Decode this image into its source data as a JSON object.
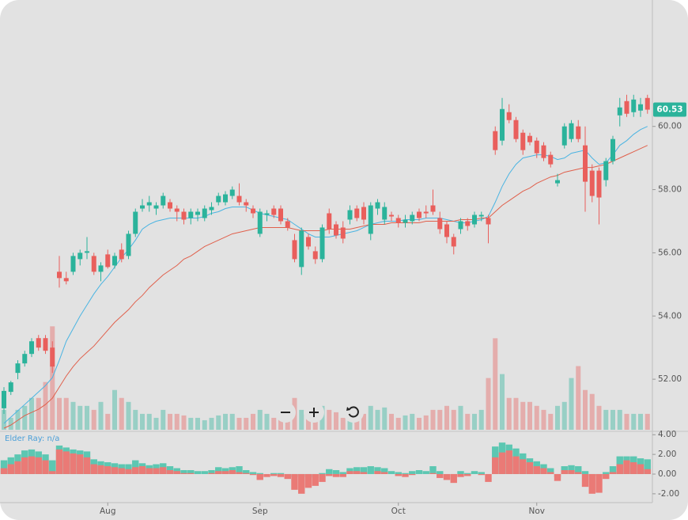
{
  "chart_data": {
    "type": "candlestick",
    "categories": [
      null,
      null,
      null,
      null,
      null,
      null,
      null,
      null,
      null,
      null,
      null,
      null,
      null,
      null,
      null,
      "Aug",
      null,
      null,
      null,
      null,
      null,
      null,
      null,
      null,
      null,
      null,
      null,
      null,
      null,
      null,
      null,
      null,
      null,
      null,
      null,
      null,
      null,
      "Sep",
      null,
      null,
      null,
      null,
      null,
      null,
      null,
      null,
      null,
      null,
      null,
      null,
      null,
      null,
      null,
      null,
      null,
      null,
      null,
      "Oct",
      null,
      null,
      null,
      null,
      null,
      null,
      null,
      null,
      null,
      null,
      null,
      null,
      null,
      null,
      null,
      null,
      null,
      null,
      null,
      "Nov",
      null,
      null,
      null,
      null,
      null,
      null,
      null,
      null,
      null,
      null,
      null,
      null,
      null,
      null,
      null,
      null
    ],
    "candles": [
      [
        51.08,
        51.75,
        50.9,
        51.63
      ],
      [
        51.6,
        51.95,
        51.5,
        51.9
      ],
      [
        52.2,
        52.6,
        52.0,
        52.5
      ],
      [
        52.5,
        52.9,
        52.4,
        52.8
      ],
      [
        52.8,
        53.3,
        52.7,
        53.2
      ],
      [
        53.3,
        53.4,
        52.9,
        53.0
      ],
      [
        53.3,
        53.4,
        52.8,
        52.9
      ],
      [
        53.0,
        53.2,
        52.2,
        52.4
      ],
      [
        55.4,
        55.9,
        54.9,
        55.2
      ],
      [
        55.2,
        55.4,
        55.0,
        55.1
      ],
      [
        55.4,
        56.0,
        55.3,
        55.9
      ],
      [
        55.8,
        56.1,
        55.6,
        56.0
      ],
      [
        56.0,
        56.5,
        55.8,
        56.05
      ],
      [
        55.9,
        56.0,
        55.3,
        55.4
      ],
      [
        55.4,
        55.7,
        55.1,
        55.6
      ],
      [
        55.95,
        56.1,
        55.5,
        55.55
      ],
      [
        55.6,
        56.0,
        55.5,
        55.9
      ],
      [
        56.1,
        56.3,
        55.7,
        55.8
      ],
      [
        55.9,
        56.7,
        55.8,
        56.6
      ],
      [
        56.6,
        57.4,
        56.5,
        57.3
      ],
      [
        57.4,
        57.7,
        57.3,
        57.5
      ],
      [
        57.5,
        57.8,
        57.3,
        57.6
      ],
      [
        57.4,
        57.6,
        57.2,
        57.5
      ],
      [
        57.5,
        57.9,
        57.4,
        57.8
      ],
      [
        57.6,
        57.7,
        57.3,
        57.4
      ],
      [
        57.4,
        57.5,
        57.0,
        57.3
      ],
      [
        57.3,
        57.4,
        56.9,
        57.05
      ],
      [
        57.1,
        57.4,
        56.9,
        57.3
      ],
      [
        57.2,
        57.4,
        57.0,
        57.3
      ],
      [
        57.1,
        57.5,
        57.0,
        57.4
      ],
      [
        57.35,
        57.6,
        57.2,
        57.45
      ],
      [
        57.6,
        57.9,
        57.5,
        57.8
      ],
      [
        57.6,
        57.95,
        57.5,
        57.85
      ],
      [
        57.8,
        58.1,
        57.7,
        58.0
      ],
      [
        57.8,
        58.2,
        57.5,
        57.6
      ],
      [
        57.6,
        57.7,
        57.3,
        57.5
      ],
      [
        57.4,
        57.5,
        57.1,
        57.25
      ],
      [
        56.6,
        57.4,
        56.5,
        57.3
      ],
      [
        57.2,
        57.35,
        57.0,
        57.25
      ],
      [
        57.4,
        57.5,
        57.1,
        57.2
      ],
      [
        57.4,
        57.5,
        56.9,
        57.0
      ],
      [
        57.0,
        57.1,
        56.7,
        56.8
      ],
      [
        56.4,
        56.6,
        55.7,
        55.8
      ],
      [
        55.55,
        56.8,
        55.3,
        56.7
      ],
      [
        56.5,
        56.6,
        56.1,
        56.2
      ],
      [
        56.05,
        56.2,
        55.65,
        55.8
      ],
      [
        55.8,
        56.9,
        55.7,
        56.8
      ],
      [
        57.25,
        57.4,
        56.6,
        56.75
      ],
      [
        56.9,
        57.0,
        56.45,
        56.55
      ],
      [
        56.8,
        57.0,
        56.3,
        56.45
      ],
      [
        57.05,
        57.5,
        56.9,
        57.35
      ],
      [
        57.4,
        57.5,
        57.0,
        57.1
      ],
      [
        57.45,
        57.6,
        56.9,
        57.05
      ],
      [
        56.6,
        57.6,
        56.4,
        57.5
      ],
      [
        57.4,
        57.7,
        57.2,
        57.6
      ],
      [
        57.05,
        57.6,
        56.9,
        57.45
      ],
      [
        57.2,
        57.3,
        57.0,
        57.15
      ],
      [
        57.1,
        57.2,
        56.8,
        56.95
      ],
      [
        56.95,
        57.2,
        56.8,
        57.05
      ],
      [
        57.0,
        57.3,
        56.9,
        57.2
      ],
      [
        57.3,
        57.4,
        57.0,
        57.1
      ],
      [
        57.3,
        57.5,
        57.1,
        57.25
      ],
      [
        57.5,
        58.0,
        57.2,
        57.3
      ],
      [
        57.1,
        57.3,
        56.6,
        56.75
      ],
      [
        56.9,
        57.0,
        56.3,
        56.5
      ],
      [
        56.5,
        56.6,
        55.95,
        56.2
      ],
      [
        56.75,
        57.1,
        56.6,
        57.0
      ],
      [
        57.0,
        57.1,
        56.7,
        56.85
      ],
      [
        56.9,
        57.3,
        56.8,
        57.2
      ],
      [
        57.15,
        57.3,
        57.0,
        57.2
      ],
      [
        57.1,
        57.2,
        56.3,
        56.9
      ],
      [
        59.85,
        60.0,
        59.1,
        59.25
      ],
      [
        59.55,
        60.9,
        59.4,
        60.55
      ],
      [
        60.45,
        60.7,
        60.1,
        60.2
      ],
      [
        60.2,
        60.3,
        59.5,
        59.6
      ],
      [
        59.8,
        59.9,
        59.1,
        59.25
      ],
      [
        59.7,
        59.8,
        59.4,
        59.5
      ],
      [
        59.55,
        59.65,
        59.0,
        59.15
      ],
      [
        59.4,
        59.5,
        58.9,
        59.0
      ],
      [
        59.1,
        59.2,
        58.7,
        58.8
      ],
      [
        58.2,
        58.5,
        58.1,
        58.3
      ],
      [
        59.4,
        60.1,
        59.3,
        60.0
      ],
      [
        59.6,
        60.2,
        59.5,
        60.1
      ],
      [
        60.0,
        60.2,
        59.5,
        59.6
      ],
      [
        59.4,
        60.0,
        57.3,
        58.25
      ],
      [
        58.6,
        58.8,
        57.6,
        57.8
      ],
      [
        58.6,
        58.7,
        56.9,
        57.75
      ],
      [
        58.3,
        59.0,
        58.1,
        58.9
      ],
      [
        58.9,
        59.7,
        58.8,
        59.6
      ],
      [
        60.35,
        60.9,
        60.0,
        60.6
      ],
      [
        60.8,
        61.0,
        60.3,
        60.4
      ],
      [
        60.45,
        61.0,
        60.3,
        60.85
      ],
      [
        60.5,
        60.9,
        60.3,
        60.7
      ],
      [
        60.9,
        61.0,
        60.4,
        60.53
      ]
    ],
    "up_color": "#2bb39b",
    "down_color": "#e95f5c",
    "ylim": [
      50.4,
      64
    ],
    "yticks": [
      {
        "value": 52,
        "label": "52.00"
      },
      {
        "value": 54,
        "label": "54.00"
      },
      {
        "value": 56,
        "label": "56.00"
      },
      {
        "value": 58,
        "label": "58.00"
      },
      {
        "value": 60,
        "label": "60.00"
      }
    ],
    "volume": [
      2.5,
      1.5,
      2.5,
      3,
      4,
      4,
      6,
      13,
      4,
      4,
      3.5,
      3,
      3,
      2.5,
      3.5,
      2,
      5,
      4,
      3.5,
      2.5,
      2,
      2,
      1.5,
      2.5,
      2,
      2,
      1.8,
      1.5,
      1.5,
      1.2,
      1.5,
      1.8,
      2,
      2,
      1.5,
      1.5,
      2,
      2.5,
      2,
      1.5,
      1.5,
      2.5,
      4,
      2.5,
      2,
      2.5,
      3,
      2.5,
      2.2,
      1.5,
      1.8,
      1.5,
      2,
      3,
      2.5,
      2.8,
      2,
      1.5,
      1.8,
      2,
      1.5,
      1.8,
      2.5,
      2.5,
      3,
      2.5,
      3,
      2,
      2,
      2.5,
      6.5,
      11.5,
      7,
      4,
      4,
      3.5,
      3.5,
      3,
      2.5,
      2,
      3,
      3.5,
      6.5,
      8,
      5,
      4.5,
      3,
      2.5,
      2.5,
      2.5,
      2,
      2,
      2,
      2
    ],
    "volume_lim": [
      0,
      54
    ],
    "lines": [
      {
        "color": "#4ab4e2",
        "values": [
          50.6,
          50.8,
          51.0,
          51.2,
          51.4,
          51.6,
          51.8,
          52.05,
          52.6,
          53.2,
          53.6,
          54.0,
          54.35,
          54.7,
          55.0,
          55.25,
          55.55,
          55.85,
          56.1,
          56.4,
          56.75,
          56.9,
          57.0,
          57.05,
          57.1,
          57.1,
          57.1,
          57.1,
          57.1,
          57.15,
          57.25,
          57.3,
          57.4,
          57.45,
          57.45,
          57.45,
          57.35,
          57.25,
          57.2,
          57.15,
          57.1,
          57.05,
          56.9,
          56.75,
          56.6,
          56.5,
          56.5,
          56.5,
          56.55,
          56.6,
          56.65,
          56.7,
          56.8,
          56.9,
          56.95,
          57.0,
          57.0,
          57.0,
          57.05,
          57.05,
          57.05,
          57.1,
          57.1,
          57.1,
          57.05,
          57.0,
          56.95,
          56.95,
          57.0,
          57.05,
          57.15,
          57.6,
          58.1,
          58.5,
          58.8,
          59.0,
          59.05,
          59.1,
          59.1,
          59.05,
          58.95,
          59.0,
          59.15,
          59.2,
          59.25,
          59.0,
          58.8,
          58.85,
          59.1,
          59.4,
          59.55,
          59.75,
          59.9,
          60.0
        ]
      },
      {
        "color": "#e0604c",
        "values": [
          50.45,
          50.55,
          50.7,
          50.85,
          50.95,
          51.05,
          51.2,
          51.4,
          51.75,
          52.1,
          52.4,
          52.65,
          52.85,
          53.05,
          53.3,
          53.55,
          53.8,
          54.0,
          54.2,
          54.45,
          54.65,
          54.9,
          55.1,
          55.3,
          55.45,
          55.6,
          55.8,
          55.9,
          56.05,
          56.2,
          56.3,
          56.4,
          56.5,
          56.6,
          56.65,
          56.7,
          56.75,
          56.8,
          56.8,
          56.8,
          56.8,
          56.8,
          56.75,
          56.7,
          56.7,
          56.7,
          56.7,
          56.75,
          56.75,
          56.75,
          56.75,
          56.8,
          56.85,
          56.9,
          56.9,
          56.9,
          56.95,
          56.95,
          56.95,
          56.95,
          56.95,
          57.0,
          57.0,
          57.0,
          57.0,
          57.0,
          57.05,
          57.05,
          57.05,
          57.1,
          57.1,
          57.3,
          57.5,
          57.65,
          57.8,
          57.95,
          58.05,
          58.2,
          58.3,
          58.4,
          58.45,
          58.55,
          58.6,
          58.65,
          58.7,
          58.7,
          58.75,
          58.8,
          58.9,
          59.0,
          59.1,
          59.2,
          59.3,
          59.4
        ]
      }
    ],
    "indicator": {
      "type": "bar",
      "title": "Elder Ray: n/a",
      "series": [
        {
          "color": "#5cc7b2",
          "values": [
            1.4,
            1.7,
            2.0,
            2.4,
            2.5,
            2.3,
            2.0,
            1.4,
            2.9,
            2.7,
            2.5,
            2.4,
            2.3,
            1.5,
            1.3,
            1.2,
            1.1,
            1.0,
            1.0,
            1.4,
            1.1,
            0.9,
            1.0,
            1.1,
            0.8,
            0.6,
            0.4,
            0.4,
            0.3,
            0.3,
            0.4,
            0.7,
            0.6,
            0.7,
            0.8,
            0.4,
            0.2,
            0.1,
            0.0,
            0.1,
            0.1,
            -0.1,
            -0.3,
            -0.1,
            -0.3,
            -0.4,
            0.1,
            0.5,
            0.4,
            0.2,
            0.6,
            0.7,
            0.7,
            0.8,
            0.7,
            0.6,
            0.3,
            0.2,
            0.1,
            0.3,
            0.4,
            0.3,
            0.8,
            0.3,
            0.0,
            -0.2,
            0.3,
            0.1,
            0.3,
            0.2,
            0.0,
            2.8,
            3.2,
            3.0,
            2.6,
            2.1,
            1.6,
            1.3,
            1.0,
            0.6,
            -0.3,
            0.8,
            0.9,
            0.8,
            0.3,
            -0.2,
            -0.2,
            0.2,
            0.8,
            1.8,
            1.8,
            1.8,
            1.6,
            1.5
          ]
        },
        {
          "color": "#ea7a76",
          "values": [
            0.6,
            1.0,
            1.3,
            1.7,
            1.8,
            1.7,
            1.4,
            0.3,
            2.5,
            2.3,
            2.1,
            2.0,
            1.7,
            1.0,
            0.9,
            0.8,
            0.7,
            0.6,
            0.5,
            0.7,
            0.8,
            0.6,
            0.6,
            0.7,
            0.4,
            0.3,
            0.1,
            0.1,
            0.0,
            0.0,
            0.1,
            0.3,
            0.3,
            0.4,
            0.2,
            0.1,
            -0.1,
            -0.6,
            -0.3,
            -0.2,
            -0.3,
            -0.5,
            -1.6,
            -2.0,
            -1.4,
            -1.2,
            -0.8,
            -0.2,
            -0.3,
            -0.3,
            0.3,
            0.3,
            0.2,
            0.0,
            0.3,
            0.2,
            0.0,
            -0.2,
            -0.3,
            -0.1,
            0.0,
            0.0,
            0.1,
            -0.4,
            -0.6,
            -0.9,
            -0.3,
            -0.2,
            0.0,
            -0.1,
            -0.8,
            1.7,
            2.2,
            2.4,
            1.8,
            1.5,
            1.2,
            0.8,
            0.6,
            0.2,
            -0.7,
            0.4,
            0.4,
            0.2,
            -1.3,
            -2.0,
            -1.9,
            -0.5,
            0.2,
            1.0,
            1.4,
            1.2,
            1.0,
            0.5
          ]
        }
      ],
      "ylim": [
        -2.9,
        4.1
      ],
      "yticks": [
        {
          "value": 4,
          "label": "4.00"
        },
        {
          "value": 2,
          "label": "2.00"
        },
        {
          "value": 0,
          "label": "0.00"
        },
        {
          "value": -2,
          "label": "-2.00"
        }
      ]
    }
  }
}
